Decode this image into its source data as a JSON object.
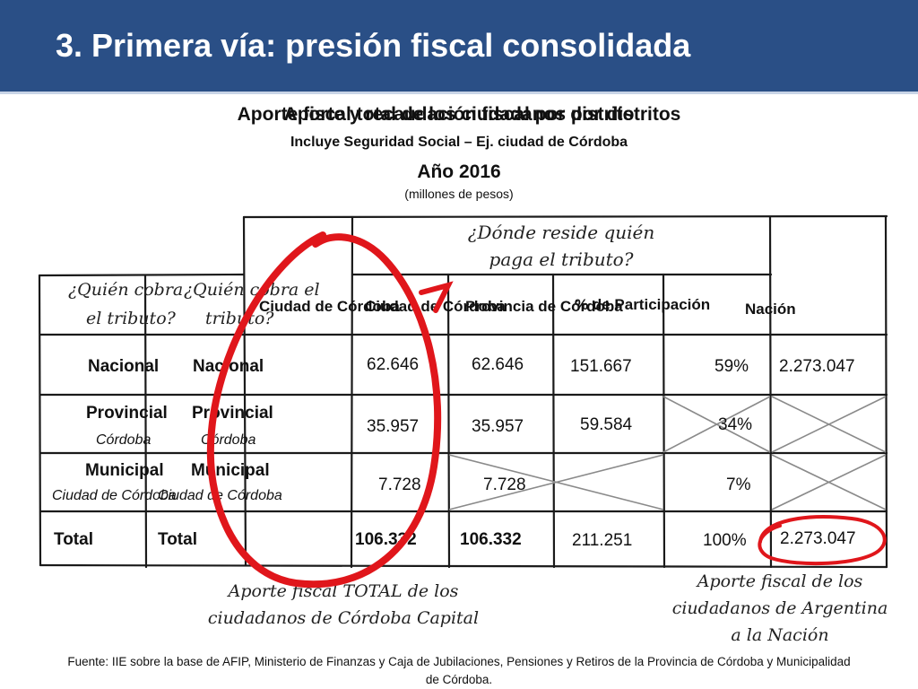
{
  "slide": {
    "title": "3. Primera vía: presión fiscal consolidada",
    "subtitle_a": "Aporte fiscal total de los ciudadanos por distritos",
    "subtitle_b": "Aporte y recaudación fiscal por distrito",
    "subtitle_2": "Incluye Seguridad Social – Ej. ciudad de Córdoba",
    "year": "Año 2016",
    "units": "(millones de pesos)"
  },
  "annotations": {
    "donde_line1": "¿Dónde reside quién",
    "donde_line2": "paga el tributo?",
    "quien_a_line1": "¿Quién cobra",
    "quien_a_line2": "el tributo?",
    "quien_b_line1": "¿Quién cobra el",
    "quien_b_line2": "tributo?",
    "note_left_line1": "Aporte fiscal TOTAL de los",
    "note_left_line2": "ciudadanos de Córdoba Capital",
    "note_right_line1": "Aporte fiscal de los",
    "note_right_line2": "ciudadanos de Argentina",
    "note_right_line3": "a la Nación"
  },
  "table": {
    "headers": {
      "ciudad_a": "Ciudad de Córdoba",
      "ciudad_b": "Ciudad de Córdoba",
      "provincia": "Provincia de Córdoba",
      "participacion": "% de Participación",
      "nacion": "Nación"
    },
    "rows": [
      {
        "label": "Nacional",
        "sub": "",
        "ciudad_a": "62.646",
        "ciudad_b": "62.646",
        "provincia": "151.667",
        "pct": "59%",
        "nacion": "2.273.047"
      },
      {
        "label": "Provincial",
        "sub": "Córdoba",
        "ciudad_a": "35.957",
        "ciudad_b": "35.957",
        "provincia": "59.584",
        "pct": "34%",
        "nacion": ""
      },
      {
        "label": "Municipal",
        "sub": "Ciudad de Córdoba",
        "ciudad_a": "7.728",
        "ciudad_b": "7.728",
        "provincia": "",
        "pct": "7%",
        "nacion": ""
      },
      {
        "label": "Total",
        "sub": "",
        "ciudad_a": "106.332",
        "ciudad_b": "106.332",
        "provincia": "211.251",
        "pct": "100%",
        "nacion": "2.273.047"
      }
    ]
  },
  "source": {
    "line1": "Fuente: IIE sobre la base de AFIP, Ministerio de Finanzas y Caja de Jubilaciones, Pensiones y Retiros de la Provincia de Córdoba y Municipalidad",
    "line2": "de Córdoba."
  },
  "colors": {
    "banner": "#2a4f86",
    "circle": "#e0161b",
    "grid": "#1a1a1a"
  }
}
